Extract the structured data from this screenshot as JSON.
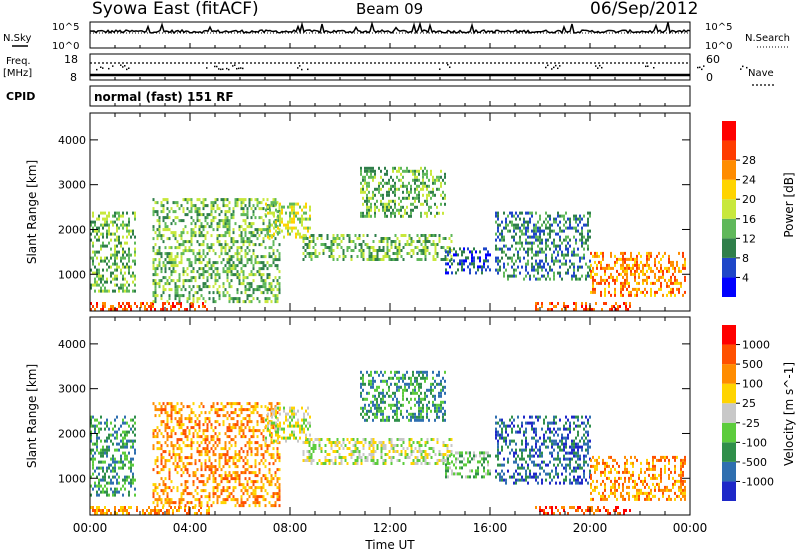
{
  "header": {
    "station": "Syowa East (fitACF)",
    "beam": "Beam 09",
    "date": "06/Sep/2012"
  },
  "summary": {
    "nsky_label": "N.Sky",
    "nsearch_label": "N.Search",
    "freq_label_1": "Freq.",
    "freq_label_2": "[MHz]",
    "nave_label": "Nave",
    "cpid_label": "CPID",
    "cpid_text": "normal (fast) 151 RF",
    "noise_ticks": [
      "10^5",
      "10^0"
    ],
    "freq_ticks": [
      "18",
      "8"
    ],
    "nave_ticks": [
      "60",
      "0"
    ]
  },
  "chart_data": [
    {
      "type": "heatmap",
      "name": "power",
      "ylabel": "Slant Range [km]",
      "ylim": [
        180,
        4600
      ],
      "yticks": [
        "1000",
        "2000",
        "3000",
        "4000"
      ],
      "colorbar_label": "Power [dB]",
      "colorbar_ticks": [
        "4",
        "8",
        "12",
        "16",
        "20",
        "24",
        "28"
      ],
      "colors": [
        "#0000ff",
        "#1e46c8",
        "#2f7f4a",
        "#5fb85a",
        "#c8e83c",
        "#ffd400",
        "#ff8c00",
        "#ff3c00",
        "#ff0000"
      ],
      "features": [
        {
          "t0": 0.0,
          "t1": 4.8,
          "r0": 220,
          "r1": 380,
          "level": 7
        },
        {
          "t0": 0.0,
          "t1": 1.8,
          "r0": 600,
          "r1": 2400,
          "level": 3
        },
        {
          "t0": 2.5,
          "t1": 7.6,
          "r0": 400,
          "r1": 2700,
          "level": 3
        },
        {
          "t0": 7.0,
          "t1": 8.8,
          "r0": 1800,
          "r1": 2600,
          "level": 4
        },
        {
          "t0": 8.5,
          "t1": 14.5,
          "r0": 1300,
          "r1": 1900,
          "level": 3
        },
        {
          "t0": 10.8,
          "t1": 14.2,
          "r0": 2300,
          "r1": 3400,
          "level": 3
        },
        {
          "t0": 14.2,
          "t1": 16.0,
          "r0": 1000,
          "r1": 1600,
          "level": 1
        },
        {
          "t0": 16.2,
          "t1": 20.0,
          "r0": 900,
          "r1": 2400,
          "level": 2
        },
        {
          "t0": 17.8,
          "t1": 21.6,
          "r0": 230,
          "r1": 380,
          "level": 7
        },
        {
          "t0": 20.0,
          "t1": 23.8,
          "r0": 500,
          "r1": 1500,
          "level": 6
        }
      ]
    },
    {
      "type": "heatmap",
      "name": "velocity",
      "ylabel": "Slant Range [km]",
      "xlabel": "Time UT",
      "ylim": [
        180,
        4600
      ],
      "yticks": [
        "1000",
        "2000",
        "3000",
        "4000"
      ],
      "xticks": [
        "00:00",
        "04:00",
        "08:00",
        "12:00",
        "16:00",
        "20:00",
        "00:00"
      ],
      "xlim": [
        0,
        24
      ],
      "colorbar_label": "Velocity [m s^-1]",
      "colorbar_ticks": [
        "1000",
        "500",
        "100",
        "25",
        "-25",
        "-100",
        "-500",
        "-1000"
      ],
      "colors": [
        "#1e28c8",
        "#2f6fb0",
        "#2f8f4a",
        "#5ccc3c",
        "#c8c8c8",
        "#ffd400",
        "#ff8c00",
        "#ff5000",
        "#ff0000"
      ],
      "features": [
        {
          "t0": 0.0,
          "t1": 4.8,
          "r0": 220,
          "r1": 380,
          "level": 6
        },
        {
          "t0": 0.0,
          "t1": 1.8,
          "r0": 600,
          "r1": 2400,
          "level": 2
        },
        {
          "t0": 2.5,
          "t1": 7.6,
          "r0": 400,
          "r1": 2700,
          "level": 6
        },
        {
          "t0": 7.0,
          "t1": 8.8,
          "r0": 1800,
          "r1": 2600,
          "level": 4
        },
        {
          "t0": 8.5,
          "t1": 14.5,
          "r0": 1300,
          "r1": 1900,
          "level": 4
        },
        {
          "t0": 10.8,
          "t1": 14.2,
          "r0": 2300,
          "r1": 3400,
          "level": 2
        },
        {
          "t0": 14.2,
          "t1": 16.0,
          "r0": 1000,
          "r1": 1600,
          "level": 3
        },
        {
          "t0": 16.2,
          "t1": 20.0,
          "r0": 900,
          "r1": 2400,
          "level": 1
        },
        {
          "t0": 17.8,
          "t1": 21.6,
          "r0": 230,
          "r1": 380,
          "level": 7
        },
        {
          "t0": 20.0,
          "t1": 23.8,
          "r0": 500,
          "r1": 1500,
          "level": 6
        }
      ]
    }
  ]
}
